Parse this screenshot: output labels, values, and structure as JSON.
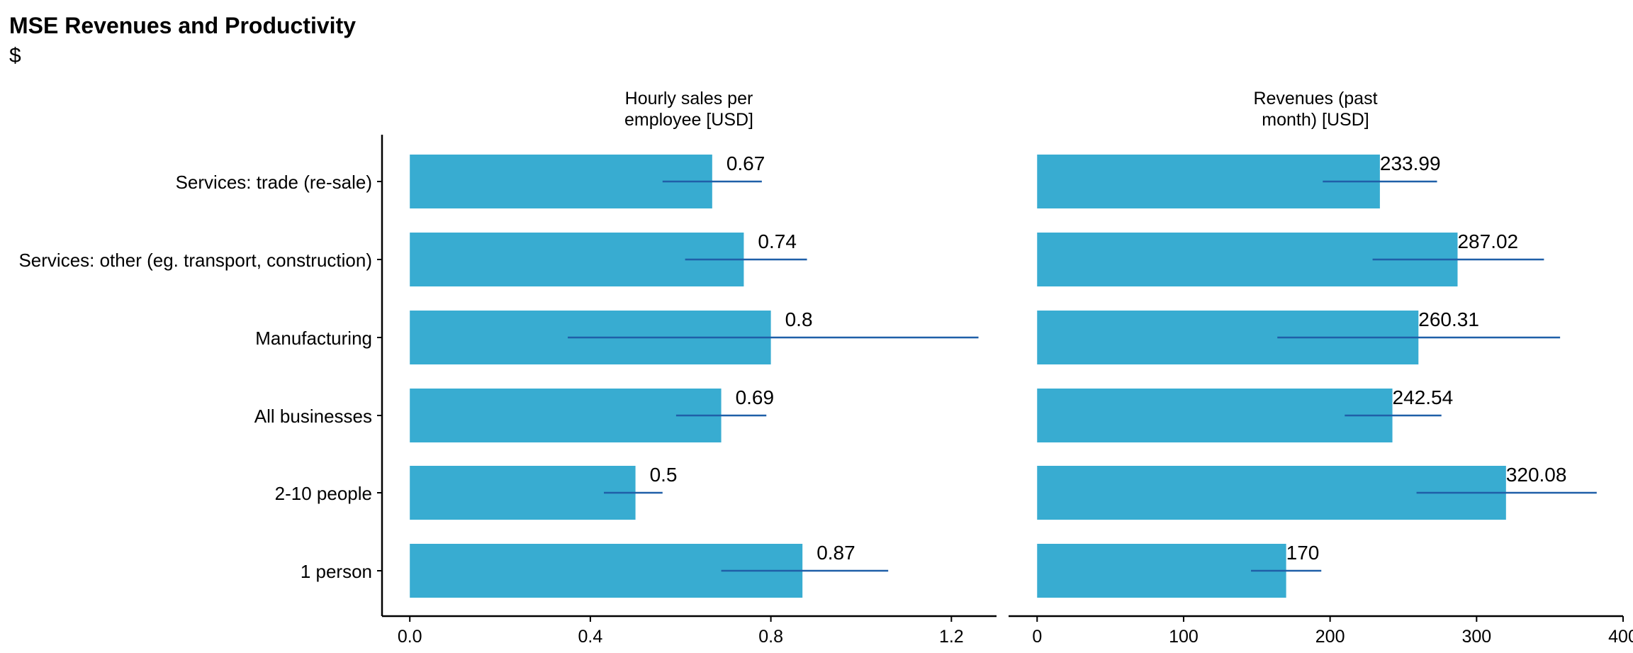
{
  "title": "MSE Revenues and Productivity",
  "subtitle": "$",
  "chart_data": {
    "type": "bar",
    "orientation": "horizontal",
    "categories": [
      "Services: trade (re-sale)",
      "Services: other (eg. transport, construction)",
      "Manufacturing",
      "All businesses",
      "2-10 people",
      "1 person"
    ],
    "bar_color": "#38ACD1",
    "errorbar_color": "#1F5FA8",
    "panels": [
      {
        "title_lines": [
          "Hourly sales per",
          "employee [USD]"
        ],
        "values": [
          0.67,
          0.74,
          0.8,
          0.69,
          0.5,
          0.87
        ],
        "labels": [
          "0.67",
          "0.74",
          "0.8",
          "0.69",
          "0.5",
          "0.87"
        ],
        "ci_low": [
          0.56,
          0.61,
          0.35,
          0.59,
          0.43,
          0.69
        ],
        "ci_high": [
          0.78,
          0.88,
          1.26,
          0.79,
          0.56,
          1.06
        ],
        "xlim": [
          -0.06,
          1.3
        ],
        "ticks": [
          0,
          0.4,
          0.8,
          1.2
        ],
        "tick_labels": [
          "0.0",
          "0.4",
          "0.8",
          "1.2"
        ]
      },
      {
        "title_lines": [
          "Revenues (past",
          "month) [USD]"
        ],
        "values": [
          233.99,
          287.02,
          260.31,
          242.54,
          320.08,
          170
        ],
        "labels": [
          "233.99",
          "287.02",
          "260.31",
          "242.54",
          "320.08",
          "170"
        ],
        "ci_low": [
          195,
          229,
          164,
          210,
          259,
          146
        ],
        "ci_high": [
          273,
          346,
          357,
          276,
          382,
          194
        ],
        "xlim": [
          -19,
          400
        ],
        "ticks": [
          0,
          100,
          200,
          300,
          400
        ],
        "tick_labels": [
          "0",
          "100",
          "200",
          "300",
          "400"
        ]
      }
    ]
  }
}
